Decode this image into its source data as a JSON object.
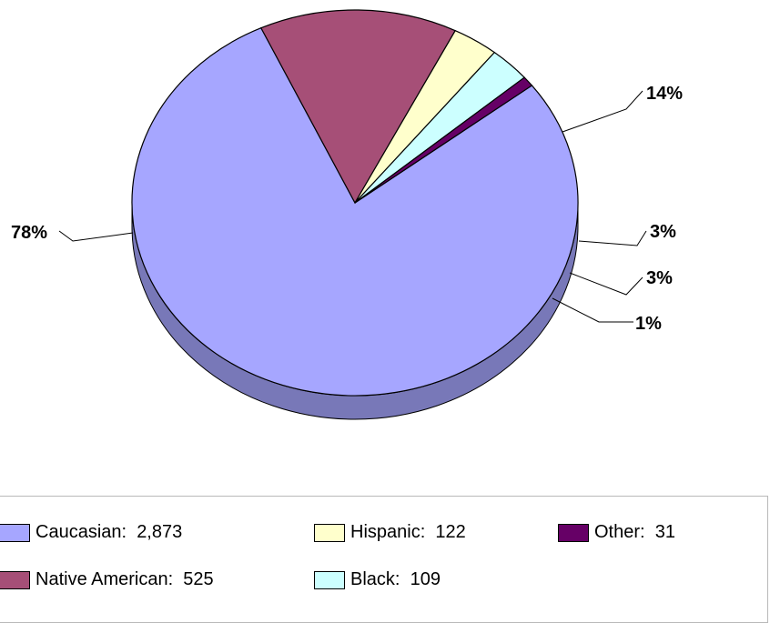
{
  "chart_data": {
    "type": "pie",
    "style": "3d",
    "slices": [
      {
        "label": "Caucasian",
        "value": 2873,
        "value_text": "2,873",
        "percent_label": "78%",
        "color": "#a6a6ff"
      },
      {
        "label": "Native American",
        "value": 525,
        "value_text": "525",
        "percent_label": "14%",
        "color": "#a64f77"
      },
      {
        "label": "Hispanic",
        "value": 122,
        "value_text": "122",
        "percent_label": "3%",
        "color": "#ffffcc"
      },
      {
        "label": "Black",
        "value": 109,
        "value_text": "109",
        "percent_label": "3%",
        "color": "#ccffff"
      },
      {
        "label": "Other",
        "value": 31,
        "value_text": "31",
        "percent_label": "1%",
        "color": "#660066"
      }
    ],
    "legend_position": "bottom"
  }
}
